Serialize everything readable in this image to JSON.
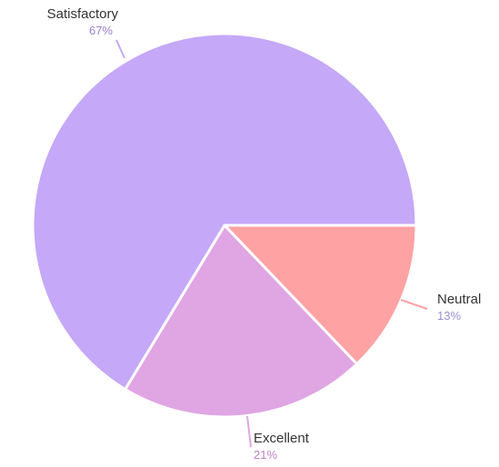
{
  "chart_data": {
    "type": "pie",
    "slices": [
      {
        "label": "Satisfactory",
        "percent_label": "67%",
        "value": 67,
        "color": "#c5a8f8",
        "label_color": "#9a7fd1"
      },
      {
        "label": "Excellent",
        "percent_label": "21%",
        "value": 21,
        "color": "#e0a5e3",
        "label_color": "#c27fcb"
      },
      {
        "label": "Neutral",
        "percent_label": "13%",
        "value": 13,
        "color": "#ffa2a4",
        "label_color": "#9a8fd1"
      }
    ],
    "legend": "none"
  }
}
